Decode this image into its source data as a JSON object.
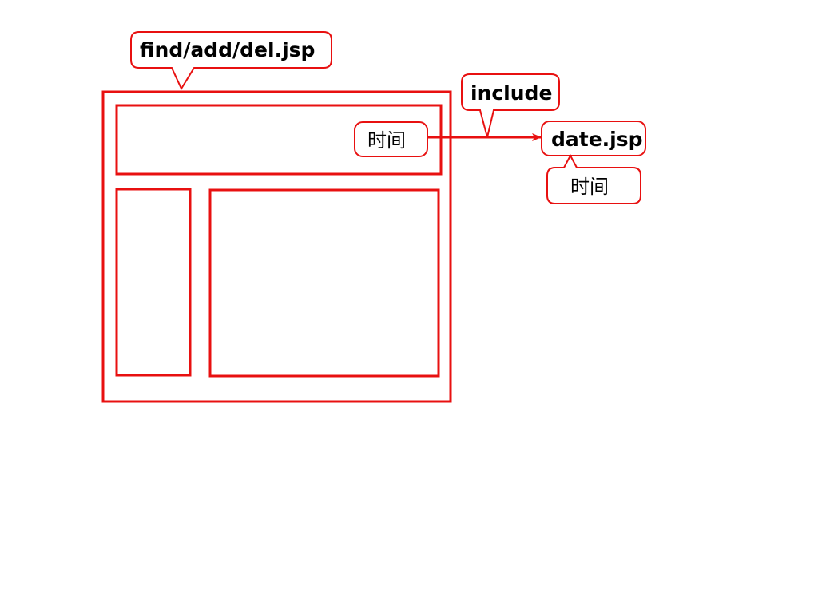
{
  "colors": {
    "stroke": "#e81010",
    "text": "#000000",
    "background": "#ffffff"
  },
  "callouts": {
    "page": "find/add/del.jsp",
    "include": "include",
    "target": "date.jsp",
    "target_note": "时间"
  },
  "header_box": {
    "time_label": "时间"
  },
  "arrow": {
    "direction": "right"
  }
}
